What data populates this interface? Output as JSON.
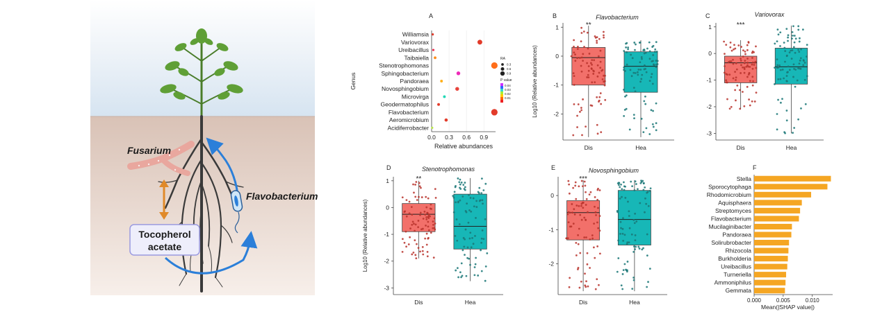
{
  "illustration": {
    "fungus_label": "Fusarium",
    "bacterium_label": "Flavobacterium",
    "compound_label_line1": "Tocopherol",
    "compound_label_line2": "acetate",
    "colors": {
      "sky_top": "#d9e6f2",
      "sky_bottom": "#eef3f8",
      "soil_top": "#dcc6bb",
      "soil_bottom": "#f5ece7",
      "root": "#3a3a3a",
      "leaf": "#5f9f36",
      "fungus": "#eba79f",
      "arrow_blue": "#2b7fd9",
      "arrow_orange": "#e08a2a",
      "box_fill": "#eeeefb",
      "box_stroke": "#9a9ae0"
    }
  },
  "chart_data": [
    {
      "panel": "A",
      "type": "scatter",
      "xlabel": "Relative abundances",
      "ylabel": "Genus",
      "xlim": [
        0,
        1.1
      ],
      "xticks": [
        0.0,
        0.3,
        0.6,
        0.9
      ],
      "xtick_labels": [
        "0.0",
        "0.3",
        "0.6",
        "0.9"
      ],
      "genera": [
        "Williamsia",
        "Variovorax",
        "Ureibacillus",
        "Taibaiella",
        "Stenotrophomonas",
        "Sphingobacterium",
        "Pandoraea",
        "Novosphingobium",
        "Microvirga",
        "Geodermatophilus",
        "Flavobacterium",
        "Aeromicrobium",
        "Acidiferrobacter"
      ],
      "x": [
        0.02,
        0.83,
        0.03,
        0.06,
        1.08,
        0.46,
        0.17,
        0.44,
        0.22,
        0.12,
        1.08,
        0.25,
        0.01
      ],
      "size": [
        0.1,
        0.6,
        0.1,
        0.2,
        0.9,
        0.4,
        0.2,
        0.4,
        0.2,
        0.2,
        0.9,
        0.3,
        0.1
      ],
      "pvalue": [
        0.045,
        0.045,
        0.04,
        0.035,
        0.02,
        0.038,
        0.015,
        0.02,
        0.03,
        0.045,
        0.045,
        0.045,
        0.005
      ],
      "colors": [
        "#e23b2a",
        "#e23b2a",
        "#ee2d4c",
        "#ff8c1a",
        "#ff6e1a",
        "#ee2ab8",
        "#ffb01a",
        "#e8443c",
        "#22d8b6",
        "#e23b2a",
        "#e23b2a",
        "#e23b2a",
        "#b8e64a"
      ],
      "legend_size_title": "RA",
      "legend_size_labels": [
        "0.3",
        "0.6",
        "0.9"
      ],
      "legend_color_title": "P value",
      "legend_color_labels": [
        "0.04",
        "0.03",
        "0.02",
        "0.01"
      ]
    },
    {
      "panel": "B",
      "type": "boxplot",
      "title": "Flavobacterium",
      "ylabel": "Log10 (Relative abundances)",
      "categories": [
        "Dis",
        "Hea"
      ],
      "ylim": [
        -2.9,
        1.15
      ],
      "yticks": [
        1,
        0,
        -1,
        -2
      ],
      "ytick_labels": [
        "1",
        "0",
        "-1",
        "-2"
      ],
      "boxes": [
        {
          "min": -2.8,
          "q1": -1.0,
          "median": -0.05,
          "q3": 0.3,
          "max": 1.05
        },
        {
          "min": -2.8,
          "q1": -1.25,
          "median": -0.35,
          "q3": 0.15,
          "max": 0.55
        }
      ],
      "significance": "**"
    },
    {
      "panel": "C",
      "type": "boxplot",
      "title": "Variovorax",
      "ylabel": "",
      "categories": [
        "Dis",
        "Hea"
      ],
      "ylim": [
        -3.25,
        1.15
      ],
      "yticks": [
        1,
        0,
        -1,
        -2,
        -3
      ],
      "ytick_labels": [
        "1",
        "0",
        "-1",
        "-2",
        "-3"
      ],
      "boxes": [
        {
          "min": -2.1,
          "q1": -1.1,
          "median": -0.35,
          "q3": -0.1,
          "max": 0.5
        },
        {
          "min": -3.0,
          "q1": -1.15,
          "median": -0.5,
          "q3": 0.2,
          "max": 1.05
        }
      ],
      "significance": "***"
    },
    {
      "panel": "D",
      "type": "boxplot",
      "title": "Stenotrophomonas",
      "ylabel": "Log10 (Relative abundances)",
      "categories": [
        "Dis",
        "Hea"
      ],
      "ylim": [
        -3.25,
        1.15
      ],
      "yticks": [
        1,
        0,
        -1,
        -2,
        -3
      ],
      "ytick_labels": [
        "1",
        "0",
        "-1",
        "-2",
        "-3"
      ],
      "boxes": [
        {
          "min": -1.9,
          "q1": -0.9,
          "median": -0.25,
          "q3": 0.15,
          "max": 1.0
        },
        {
          "min": -2.75,
          "q1": -1.55,
          "median": -0.7,
          "q3": 0.5,
          "max": 1.1
        }
      ],
      "significance": "**"
    },
    {
      "panel": "E",
      "type": "boxplot",
      "title": "Novosphingobium",
      "ylabel": "",
      "categories": [
        "Dis",
        "Hea"
      ],
      "ylim": [
        -2.9,
        0.55
      ],
      "yticks": [
        0,
        -1,
        -2
      ],
      "ytick_labels": [
        "0",
        "-1",
        "-2"
      ],
      "boxes": [
        {
          "min": -2.8,
          "q1": -1.3,
          "median": -0.5,
          "q3": -0.15,
          "max": 0.45
        },
        {
          "min": -2.8,
          "q1": -1.45,
          "median": -0.7,
          "q3": 0.15,
          "max": 0.45
        }
      ],
      "significance": "***"
    },
    {
      "panel": "F",
      "type": "bar",
      "orientation": "horizontal",
      "xlabel": "Mean(|SHAP value|)",
      "xlim": [
        0,
        0.0135
      ],
      "xticks": [
        0.0,
        0.005,
        0.01
      ],
      "xtick_labels": [
        "0.000",
        "0.005",
        "0.010"
      ],
      "categories": [
        "Stella",
        "Sporocytophaga",
        "Rhodomicrobium",
        "Aquisphaera",
        "Streptomyces",
        "Flavobacterium",
        "Mucilaginibacter",
        "Pandoraea",
        "Solirubrobacter",
        "Rhizocola",
        "Burkholderia",
        "Ureibacillus",
        "Turneriella",
        "Ammoniphilus",
        "Gemmata"
      ],
      "values": [
        0.0132,
        0.0126,
        0.0098,
        0.0082,
        0.0079,
        0.0077,
        0.0065,
        0.0064,
        0.006,
        0.0059,
        0.0058,
        0.0057,
        0.0055,
        0.0054,
        0.0053
      ],
      "bar_color": "#f5a623"
    }
  ]
}
